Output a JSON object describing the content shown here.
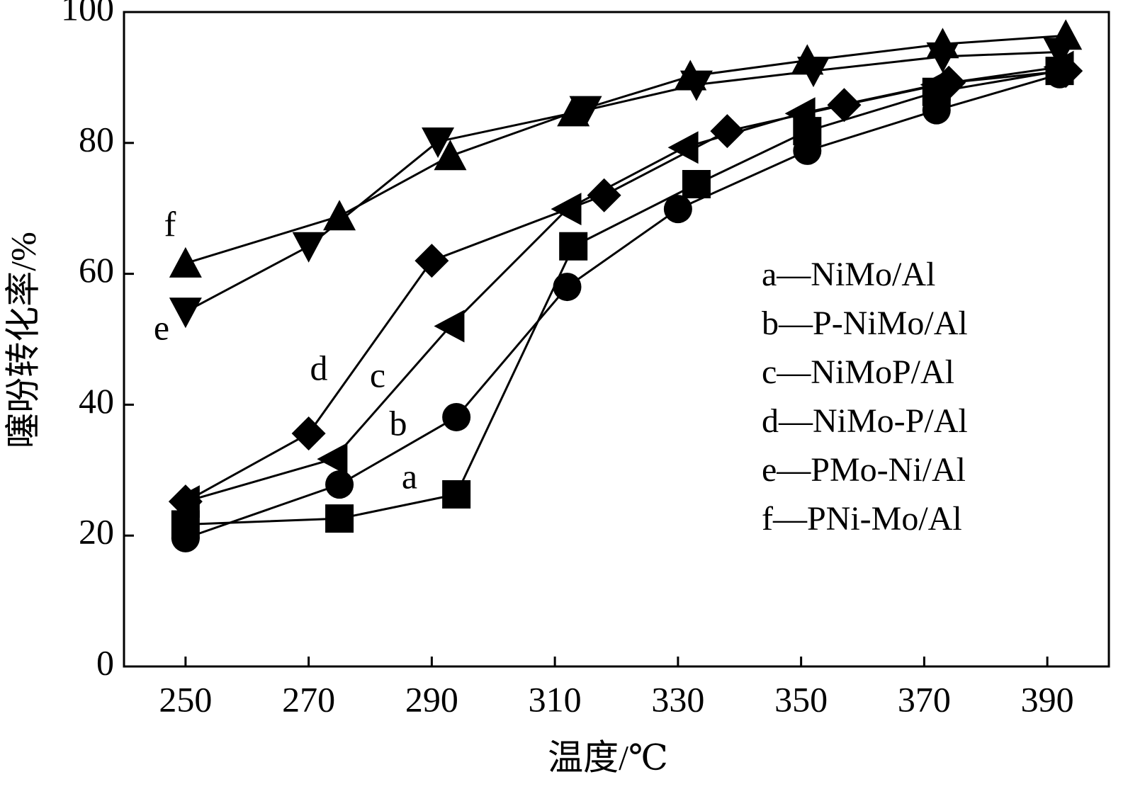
{
  "chart_data": {
    "type": "line",
    "x_label": "温度/℃",
    "y_label": "噻吩转化率/%",
    "xlim": [
      240,
      400
    ],
    "xticks": [
      250,
      270,
      290,
      310,
      330,
      350,
      370,
      390
    ],
    "ylim": [
      0,
      100
    ],
    "yticks": [
      0,
      20,
      40,
      60,
      80,
      100
    ],
    "annotations": [
      "a",
      "b",
      "c",
      "d",
      "e",
      "f"
    ],
    "series": [
      {
        "name": "a—NiMo/Al",
        "marker": "square",
        "color": "#000000",
        "x": [
          250,
          275,
          294,
          313,
          333,
          351,
          372,
          392
        ],
        "values": [
          21.7,
          22.6,
          26.3,
          64.2,
          73.7,
          81.8,
          87.8,
          91
        ]
      },
      {
        "name": "b—P-NiMo/Al",
        "marker": "circle",
        "color": "#000000",
        "x": [
          250,
          275,
          294,
          312,
          330,
          351,
          372,
          392
        ],
        "values": [
          19.6,
          27.8,
          38.1,
          58,
          69.9,
          78.8,
          85,
          90.5
        ]
      },
      {
        "name": "c—NiMoP/Al",
        "marker": "triangle-left",
        "color": "#000000",
        "x": [
          250,
          274,
          293,
          312,
          331,
          350,
          372,
          392
        ],
        "values": [
          25.2,
          31.7,
          52,
          69.9,
          79.3,
          84.5,
          88.9,
          91.6
        ]
      },
      {
        "name": "d—NiMo-P/Al",
        "marker": "diamond",
        "color": "#000000",
        "x": [
          250,
          270,
          290,
          318,
          338,
          357,
          374,
          393
        ],
        "values": [
          25.2,
          35.6,
          62,
          72,
          81.8,
          85.8,
          89.2,
          91
        ]
      },
      {
        "name": "e—PMo-Ni/Al",
        "marker": "triangle-down",
        "color": "#000000",
        "x": [
          250,
          270,
          291,
          315,
          333,
          352,
          373,
          392
        ],
        "values": [
          54.2,
          64.2,
          80.2,
          85,
          88.9,
          91,
          93.2,
          93.9
        ]
      },
      {
        "name": "f—PNi-Mo/Al",
        "marker": "triangle-up",
        "color": "#000000",
        "x": [
          250,
          275,
          293,
          313,
          332,
          351,
          373,
          393
        ],
        "values": [
          61.6,
          68.8,
          78,
          84.7,
          90.2,
          92.6,
          95.1,
          96.4
        ]
      }
    ]
  }
}
